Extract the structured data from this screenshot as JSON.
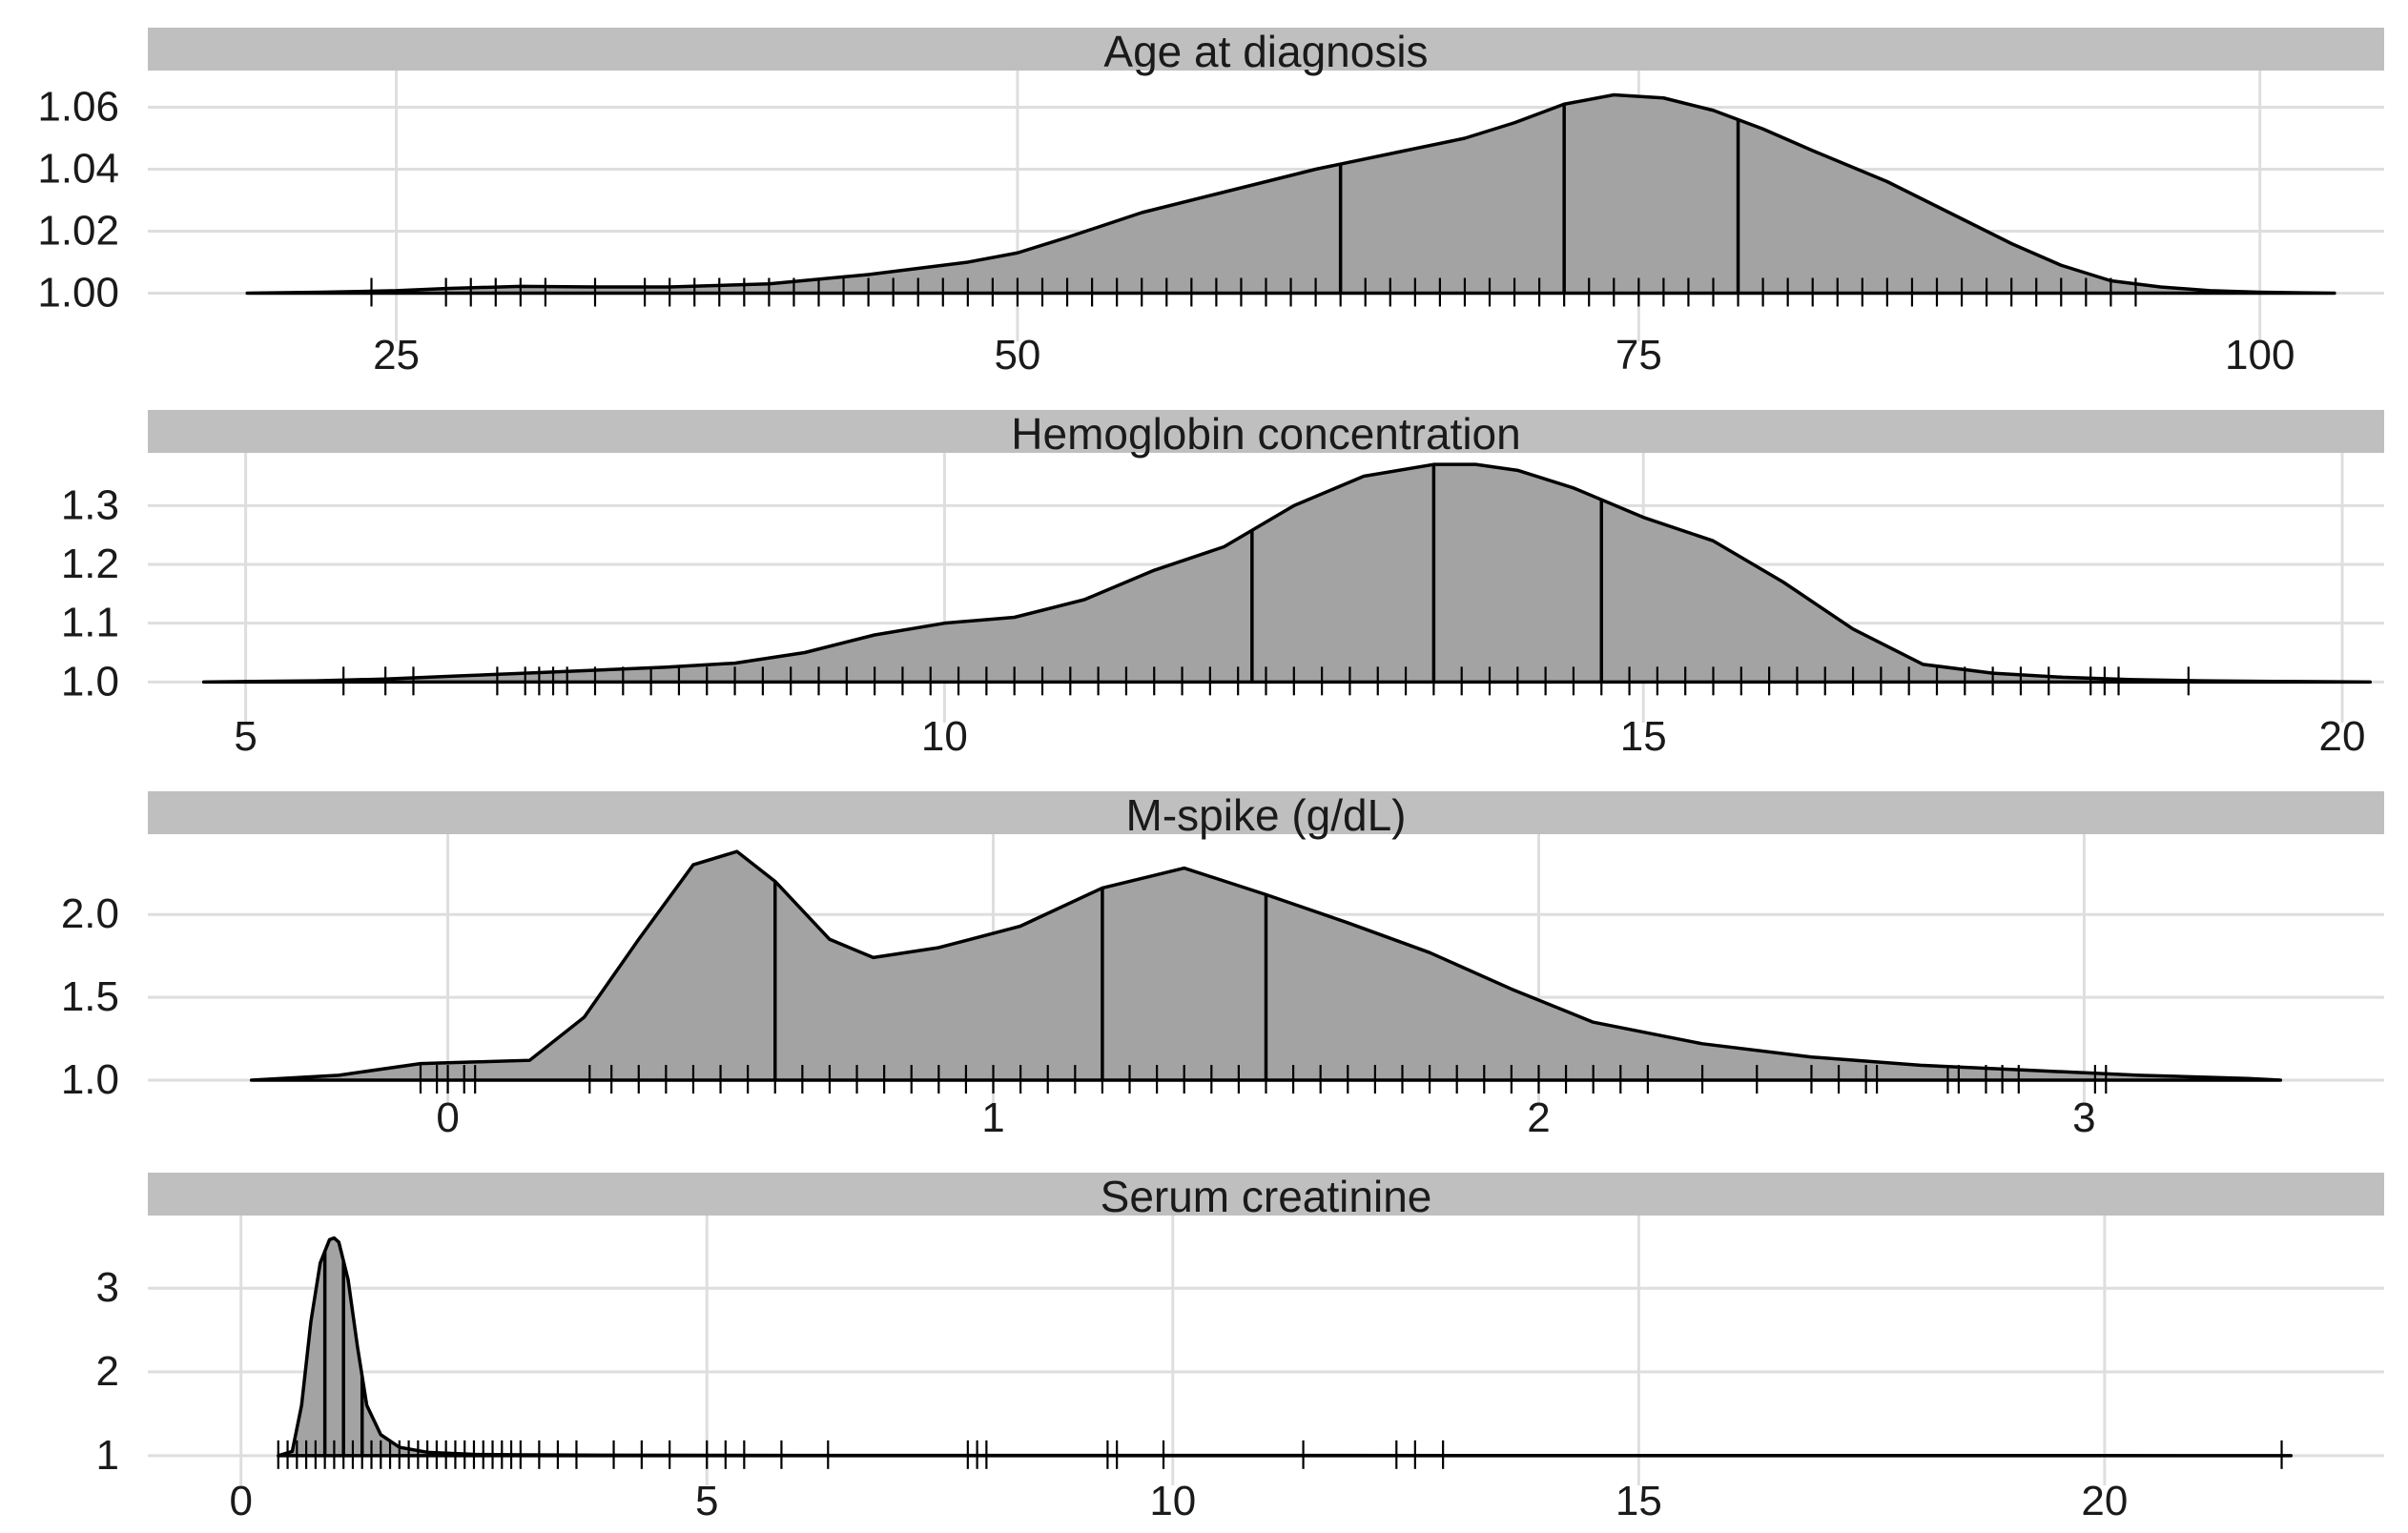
{
  "chart_data": [
    {
      "type": "area",
      "title": "Age at diagnosis",
      "xlim": [
        15,
        105
      ],
      "ylim": [
        0.99,
        1.07
      ],
      "x_ticks": [
        25,
        50,
        75,
        100
      ],
      "y_ticks": [
        1.0,
        1.02,
        1.04,
        1.06
      ],
      "x_tick_labels": [
        "25",
        "50",
        "75",
        "100"
      ],
      "y_tick_labels": [
        "1.00",
        "1.02",
        "1.04",
        "1.06"
      ],
      "density_x": [
        19,
        22,
        25,
        27,
        30,
        33,
        36,
        40,
        44,
        48,
        50,
        52,
        55,
        58,
        60,
        62,
        65,
        68,
        70,
        72,
        74,
        76,
        78,
        80,
        82,
        85,
        88,
        90,
        92,
        94,
        96,
        98,
        100,
        103
      ],
      "density_y": [
        1.0,
        1.0003,
        1.0008,
        1.0015,
        1.0022,
        1.002,
        1.002,
        1.003,
        1.006,
        1.01,
        1.013,
        1.018,
        1.026,
        1.032,
        1.036,
        1.04,
        1.045,
        1.05,
        1.055,
        1.061,
        1.064,
        1.063,
        1.059,
        1.053,
        1.046,
        1.036,
        1.024,
        1.016,
        1.009,
        1.004,
        1.002,
        1.0008,
        1.0003,
        1.0
      ],
      "quantiles": [
        63,
        72,
        79
      ],
      "rug": [
        24,
        27,
        28,
        29,
        30,
        31,
        33,
        35,
        36,
        37,
        38,
        39,
        40,
        41,
        42,
        43,
        44,
        45,
        46,
        47,
        48,
        49,
        50,
        51,
        52,
        53,
        54,
        55,
        56,
        57,
        58,
        59,
        60,
        61,
        62,
        63,
        64,
        65,
        66,
        67,
        68,
        69,
        70,
        71,
        72,
        73,
        74,
        75,
        76,
        77,
        78,
        79,
        80,
        81,
        82,
        83,
        84,
        85,
        86,
        87,
        88,
        89,
        90,
        91,
        92,
        93,
        94,
        95
      ]
    },
    {
      "type": "area",
      "title": "Hemoglobin concentration",
      "xlim": [
        4.3,
        20.3
      ],
      "ylim": [
        0.96,
        1.38
      ],
      "x_ticks": [
        5,
        10,
        15,
        20
      ],
      "y_ticks": [
        1.0,
        1.1,
        1.2,
        1.3
      ],
      "x_tick_labels": [
        "5",
        "10",
        "15",
        "20"
      ],
      "y_tick_labels": [
        "1.0",
        "1.1",
        "1.2",
        "1.3"
      ],
      "density_x": [
        4.7,
        5.5,
        6.0,
        6.5,
        7.0,
        7.5,
        8.0,
        8.5,
        9.0,
        9.5,
        10.0,
        10.5,
        11.0,
        11.5,
        12.0,
        12.5,
        13.0,
        13.5,
        13.8,
        14.1,
        14.5,
        15.0,
        15.5,
        16.0,
        16.5,
        17.0,
        17.5,
        18.0,
        18.5,
        19.0,
        19.5,
        20.2
      ],
      "density_y": [
        1.0,
        1.002,
        1.005,
        1.01,
        1.015,
        1.02,
        1.025,
        1.032,
        1.05,
        1.08,
        1.1,
        1.11,
        1.14,
        1.19,
        1.23,
        1.3,
        1.35,
        1.37,
        1.37,
        1.36,
        1.33,
        1.28,
        1.24,
        1.17,
        1.09,
        1.03,
        1.015,
        1.008,
        1.004,
        1.002,
        1.001,
        1.0
      ],
      "quantiles": [
        12.2,
        13.5,
        14.7
      ],
      "rug": [
        5.7,
        6.0,
        6.2,
        6.8,
        7.0,
        7.1,
        7.2,
        7.3,
        7.5,
        7.7,
        7.9,
        8.1,
        8.3,
        8.5,
        8.7,
        8.9,
        9.1,
        9.3,
        9.5,
        9.7,
        9.9,
        10.1,
        10.3,
        10.5,
        10.7,
        10.9,
        11.1,
        11.3,
        11.5,
        11.7,
        11.9,
        12.1,
        12.3,
        12.5,
        12.7,
        12.9,
        13.1,
        13.3,
        13.5,
        13.7,
        13.9,
        14.1,
        14.3,
        14.5,
        14.7,
        14.9,
        15.1,
        15.3,
        15.5,
        15.7,
        15.9,
        16.1,
        16.3,
        16.5,
        16.7,
        16.9,
        17.1,
        17.3,
        17.5,
        17.7,
        17.9,
        18.2,
        18.3,
        18.4,
        18.9
      ]
    },
    {
      "type": "area",
      "title": "M-spike (g/dL)",
      "xlim": [
        -0.55,
        3.55
      ],
      "ylim": [
        0.96,
        2.45
      ],
      "x_ticks": [
        0,
        1,
        2,
        3
      ],
      "y_ticks": [
        1.0,
        1.5,
        2.0
      ],
      "x_tick_labels": [
        "0",
        "1",
        "2",
        "3"
      ],
      "y_tick_labels": [
        "1.0",
        "1.5",
        "2.0"
      ],
      "density_x": [
        -0.36,
        -0.2,
        -0.05,
        0.05,
        0.15,
        0.25,
        0.35,
        0.45,
        0.53,
        0.6,
        0.7,
        0.78,
        0.9,
        1.05,
        1.2,
        1.35,
        1.5,
        1.65,
        1.8,
        1.95,
        2.1,
        2.3,
        2.5,
        2.7,
        2.9,
        3.1,
        3.3,
        3.36
      ],
      "density_y": [
        1.0,
        1.03,
        1.1,
        1.11,
        1.12,
        1.38,
        1.85,
        2.3,
        2.38,
        2.2,
        1.85,
        1.74,
        1.8,
        1.93,
        2.16,
        2.28,
        2.12,
        1.95,
        1.77,
        1.55,
        1.35,
        1.22,
        1.14,
        1.09,
        1.06,
        1.03,
        1.01,
        1.0
      ],
      "quantiles": [
        0.6,
        1.2,
        1.5
      ],
      "rug": [
        -0.05,
        -0.02,
        0.0,
        0.03,
        0.05,
        0.26,
        0.3,
        0.35,
        0.4,
        0.45,
        0.5,
        0.55,
        0.6,
        0.65,
        0.7,
        0.75,
        0.8,
        0.85,
        0.9,
        0.95,
        1.0,
        1.05,
        1.1,
        1.15,
        1.2,
        1.25,
        1.3,
        1.35,
        1.4,
        1.45,
        1.5,
        1.55,
        1.6,
        1.65,
        1.7,
        1.75,
        1.8,
        1.85,
        1.9,
        1.95,
        2.0,
        2.05,
        2.1,
        2.15,
        2.2,
        2.3,
        2.4,
        2.5,
        2.55,
        2.6,
        2.62,
        2.75,
        2.77,
        2.82,
        2.85,
        2.88,
        3.02,
        3.04
      ]
    },
    {
      "type": "area",
      "title": "Serum creatinine",
      "xlim": [
        -1.0,
        23.0
      ],
      "ylim": [
        0.85,
        3.8
      ],
      "x_ticks": [
        0,
        5,
        10,
        15,
        20
      ],
      "y_ticks": [
        1,
        2,
        3
      ],
      "x_tick_labels": [
        "0",
        "5",
        "10",
        "15",
        "20"
      ],
      "y_tick_labels": [
        "1",
        "2",
        "3"
      ],
      "density_x": [
        0.4,
        0.55,
        0.65,
        0.75,
        0.85,
        0.95,
        1.0,
        1.05,
        1.15,
        1.25,
        1.35,
        1.5,
        1.7,
        2.0,
        2.5,
        3.0,
        4.0,
        6.0,
        10.0,
        16.0,
        22.0
      ],
      "density_y": [
        1.0,
        1.05,
        1.6,
        2.6,
        3.3,
        3.58,
        3.6,
        3.55,
        3.1,
        2.3,
        1.6,
        1.25,
        1.1,
        1.04,
        1.015,
        1.01,
        1.005,
        1.003,
        1.002,
        1.001,
        1.0
      ],
      "quantiles": [
        0.9,
        1.1,
        1.3
      ],
      "rug": [
        0.4,
        0.5,
        0.6,
        0.7,
        0.8,
        0.9,
        1.0,
        1.1,
        1.2,
        1.3,
        1.4,
        1.5,
        1.6,
        1.7,
        1.8,
        1.9,
        2.0,
        2.1,
        2.2,
        2.3,
        2.4,
        2.5,
        2.6,
        2.7,
        2.8,
        2.9,
        3.0,
        3.2,
        3.4,
        3.6,
        4.0,
        4.3,
        4.6,
        5.0,
        5.2,
        5.4,
        5.8,
        6.3,
        7.8,
        7.9,
        8.0,
        9.3,
        9.4,
        9.9,
        11.4,
        12.4,
        12.6,
        12.9,
        21.9
      ]
    }
  ]
}
